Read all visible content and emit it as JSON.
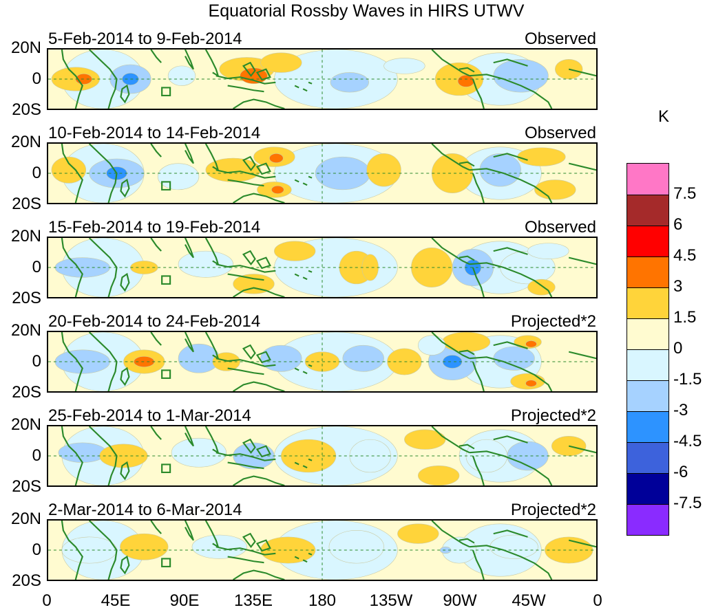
{
  "title": "Equatorial Rossby Waves in HIRS UTWV",
  "panels": [
    {
      "date_range": "5-Feb-2014 to 9-Feb-2014",
      "status": "Observed"
    },
    {
      "date_range": "10-Feb-2014 to 14-Feb-2014",
      "status": "Observed"
    },
    {
      "date_range": "15-Feb-2014 to 19-Feb-2014",
      "status": "Observed"
    },
    {
      "date_range": "20-Feb-2014 to 24-Feb-2014",
      "status": "Projected*2"
    },
    {
      "date_range": "25-Feb-2014 to 1-Mar-2014",
      "status": "Projected*2"
    },
    {
      "date_range": "2-Mar-2014 to 6-Mar-2014",
      "status": "Projected*2"
    }
  ],
  "lat_labels": [
    "20N",
    "0",
    "20S"
  ],
  "lon_labels": [
    "0",
    "45E",
    "90E",
    "135E",
    "180",
    "135W",
    "90W",
    "45W",
    "0"
  ],
  "colorbar": {
    "unit": "K",
    "labels": [
      "7.5",
      "6",
      "4.5",
      "3",
      "1.5",
      "0",
      "-1.5",
      "-3",
      "-4.5",
      "-6",
      "-7.5"
    ],
    "colors": [
      "#ff77c6",
      "#a52a2a",
      "#ff0000",
      "#ff7400",
      "#ffd43a",
      "#fffbd0",
      "#d9f6ff",
      "#a6d2ff",
      "#2d93ff",
      "#3d62dc",
      "#000099",
      "#8a2bff"
    ]
  },
  "colors": {
    "coastline": "#2b8a2b",
    "grid": "#2b8a2b"
  }
}
